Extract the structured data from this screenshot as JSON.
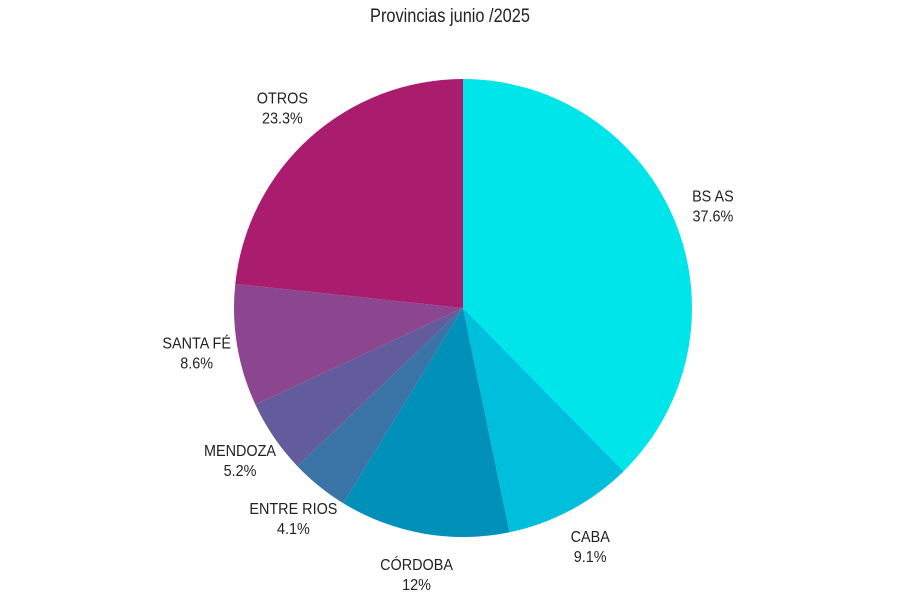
{
  "chart_data": {
    "type": "pie",
    "title": "Provincias junio /2025",
    "slices": [
      {
        "label": "BS AS",
        "display": "37.6%",
        "value": 37.6,
        "color": "#00E5EA"
      },
      {
        "label": "CABA",
        "display": "9.1%",
        "value": 9.1,
        "color": "#00BFDD"
      },
      {
        "label": "CÓRDOBA",
        "display": "12%",
        "value": 12.0,
        "color": "#0090BA"
      },
      {
        "label": "ENTRE RIOS",
        "display": "4.1%",
        "value": 4.1,
        "color": "#3A73A5"
      },
      {
        "label": "MENDOZA",
        "display": "5.2%",
        "value": 5.2,
        "color": "#635C9C"
      },
      {
        "label": "SANTA FÉ",
        "display": "8.6%",
        "value": 8.6,
        "color": "#8C4690"
      },
      {
        "label": "OTROS",
        "display": "23.3%",
        "value": 23.3,
        "color": "#AA1C6E"
      }
    ],
    "start": "12 o'clock",
    "direction": "clockwise",
    "legend": "none (labels outside slices)"
  }
}
